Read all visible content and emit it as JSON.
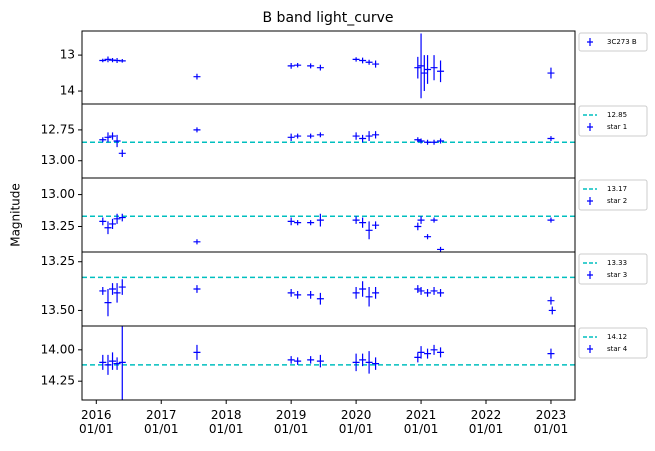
{
  "chart_data": {
    "type": "errorbar",
    "title": "B band light_curve",
    "ylabel": "Magnitude",
    "xlim": [
      2015.78,
      2023.37
    ],
    "xticks": [
      {
        "value": 2016,
        "label": "2016 01/01"
      },
      {
        "value": 2017,
        "label": "2017 01/01"
      },
      {
        "value": 2018,
        "label": "2018 01/01"
      },
      {
        "value": 2019,
        "label": "2019 01/01"
      },
      {
        "value": 2020,
        "label": "2020 01/01"
      },
      {
        "value": 2021,
        "label": "2021 01/01"
      },
      {
        "value": 2022,
        "label": "2022 01/01"
      },
      {
        "value": 2023,
        "label": "2023 01/01"
      }
    ],
    "panels": [
      {
        "ylim": [
          12.33,
          14.36
        ],
        "inverted_y": true,
        "yticks": [
          13,
          14
        ],
        "series": [
          {
            "name": "3C273 B",
            "color": "#0000ff",
            "x": [
              2016.1,
              2016.18,
              2016.25,
              2016.32,
              2016.4,
              2017.55,
              2019.0,
              2019.1,
              2019.3,
              2019.45,
              2020.0,
              2020.1,
              2020.2,
              2020.3,
              2020.95,
              2021.0,
              2021.05,
              2021.1,
              2021.2,
              2021.3,
              2023.0
            ],
            "values": [
              13.15,
              13.12,
              13.14,
              13.15,
              13.16,
              13.6,
              13.3,
              13.28,
              13.3,
              13.35,
              13.12,
              13.15,
              13.2,
              13.25,
              13.35,
              13.3,
              13.5,
              13.4,
              13.35,
              13.45,
              13.5
            ],
            "errors": [
              0.05,
              0.08,
              0.06,
              0.07,
              0.05,
              0.08,
              0.08,
              0.06,
              0.07,
              0.08,
              0.06,
              0.08,
              0.07,
              0.1,
              0.3,
              0.9,
              0.5,
              0.4,
              0.35,
              0.3,
              0.15
            ]
          }
        ]
      },
      {
        "ylim": [
          12.54,
          13.14
        ],
        "inverted_y": true,
        "reference": 12.85,
        "yticks": [
          12.75,
          {
            "value": 13,
            "label": "13.00"
          }
        ],
        "series": [
          {
            "name": "star 1",
            "color": "#0000ff",
            "x": [
              2016.1,
              2016.18,
              2016.25,
              2016.32,
              2016.4,
              2017.55,
              2019.0,
              2019.1,
              2019.3,
              2019.45,
              2020.0,
              2020.1,
              2020.2,
              2020.3,
              2020.95,
              2021.0,
              2021.1,
              2021.2,
              2021.3,
              2023.0
            ],
            "values": [
              12.83,
              12.81,
              12.8,
              12.84,
              12.94,
              12.75,
              12.81,
              12.8,
              12.8,
              12.79,
              12.8,
              12.82,
              12.8,
              12.79,
              12.83,
              12.84,
              12.85,
              12.85,
              12.84,
              12.82
            ],
            "errors": [
              0.02,
              0.04,
              0.03,
              0.05,
              0.03,
              0.02,
              0.03,
              0.02,
              0.02,
              0.02,
              0.03,
              0.03,
              0.04,
              0.03,
              0.02,
              0.02,
              0.02,
              0.02,
              0.02,
              0.02
            ]
          }
        ]
      },
      {
        "ylim": [
          12.87,
          13.45
        ],
        "inverted_y": true,
        "reference": 13.17,
        "yticks": [
          {
            "value": 13,
            "label": "13.00"
          },
          13.25
        ],
        "series": [
          {
            "name": "star 2",
            "color": "#0000ff",
            "x": [
              2016.1,
              2016.18,
              2016.25,
              2016.32,
              2016.4,
              2017.55,
              2019.0,
              2019.1,
              2019.3,
              2019.45,
              2020.0,
              2020.1,
              2020.2,
              2020.3,
              2020.95,
              2021.0,
              2021.1,
              2021.2,
              2021.3,
              2023.0
            ],
            "values": [
              13.21,
              13.26,
              13.23,
              13.19,
              13.18,
              13.37,
              13.21,
              13.22,
              13.22,
              13.2,
              13.2,
              13.22,
              13.28,
              13.24,
              13.25,
              13.2,
              13.33,
              13.2,
              13.43,
              13.2
            ],
            "errors": [
              0.03,
              0.05,
              0.04,
              0.04,
              0.03,
              0.02,
              0.03,
              0.02,
              0.02,
              0.05,
              0.03,
              0.04,
              0.07,
              0.03,
              0.03,
              0.03,
              0.02,
              0.02,
              0.02,
              0.02
            ]
          }
        ]
      },
      {
        "ylim": [
          13.2,
          13.58
        ],
        "inverted_y": true,
        "reference": 13.33,
        "yticks": [
          13.25,
          {
            "value": 13.5,
            "label": "13.50"
          }
        ],
        "series": [
          {
            "name": "star 3",
            "color": "#0000ff",
            "x": [
              2016.1,
              2016.18,
              2016.25,
              2016.32,
              2016.4,
              2017.55,
              2019.0,
              2019.1,
              2019.3,
              2019.45,
              2020.0,
              2020.1,
              2020.2,
              2020.3,
              2020.95,
              2021.0,
              2021.1,
              2021.2,
              2021.3,
              2023.0,
              2023.02
            ],
            "values": [
              13.4,
              13.46,
              13.39,
              13.41,
              13.38,
              13.39,
              13.41,
              13.42,
              13.42,
              13.44,
              13.41,
              13.39,
              13.43,
              13.41,
              13.39,
              13.4,
              13.41,
              13.4,
              13.41,
              13.45,
              13.5
            ],
            "errors": [
              0.02,
              0.07,
              0.03,
              0.05,
              0.04,
              0.02,
              0.02,
              0.02,
              0.02,
              0.03,
              0.03,
              0.04,
              0.05,
              0.03,
              0.02,
              0.02,
              0.02,
              0.02,
              0.02,
              0.02,
              0.02
            ]
          }
        ]
      },
      {
        "ylim": [
          13.81,
          14.4
        ],
        "inverted_y": true,
        "reference": 14.12,
        "yticks": [
          {
            "value": 14,
            "label": "14.00"
          },
          14.25
        ],
        "series": [
          {
            "name": "star 4",
            "color": "#0000ff",
            "x": [
              2016.1,
              2016.18,
              2016.25,
              2016.32,
              2016.4,
              2017.55,
              2019.0,
              2019.1,
              2019.3,
              2019.45,
              2020.0,
              2020.1,
              2020.2,
              2020.3,
              2020.95,
              2021.0,
              2021.1,
              2021.2,
              2021.3,
              2023.0
            ],
            "values": [
              14.1,
              14.12,
              14.09,
              14.11,
              14.1,
              14.02,
              14.08,
              14.09,
              14.08,
              14.09,
              14.1,
              14.08,
              14.1,
              14.11,
              14.06,
              14.02,
              14.03,
              14.0,
              14.02,
              14.03
            ],
            "errors": [
              0.06,
              0.08,
              0.07,
              0.05,
              0.3,
              0.06,
              0.03,
              0.03,
              0.03,
              0.05,
              0.07,
              0.05,
              0.09,
              0.05,
              0.04,
              0.05,
              0.04,
              0.04,
              0.04,
              0.04
            ]
          }
        ]
      }
    ]
  }
}
